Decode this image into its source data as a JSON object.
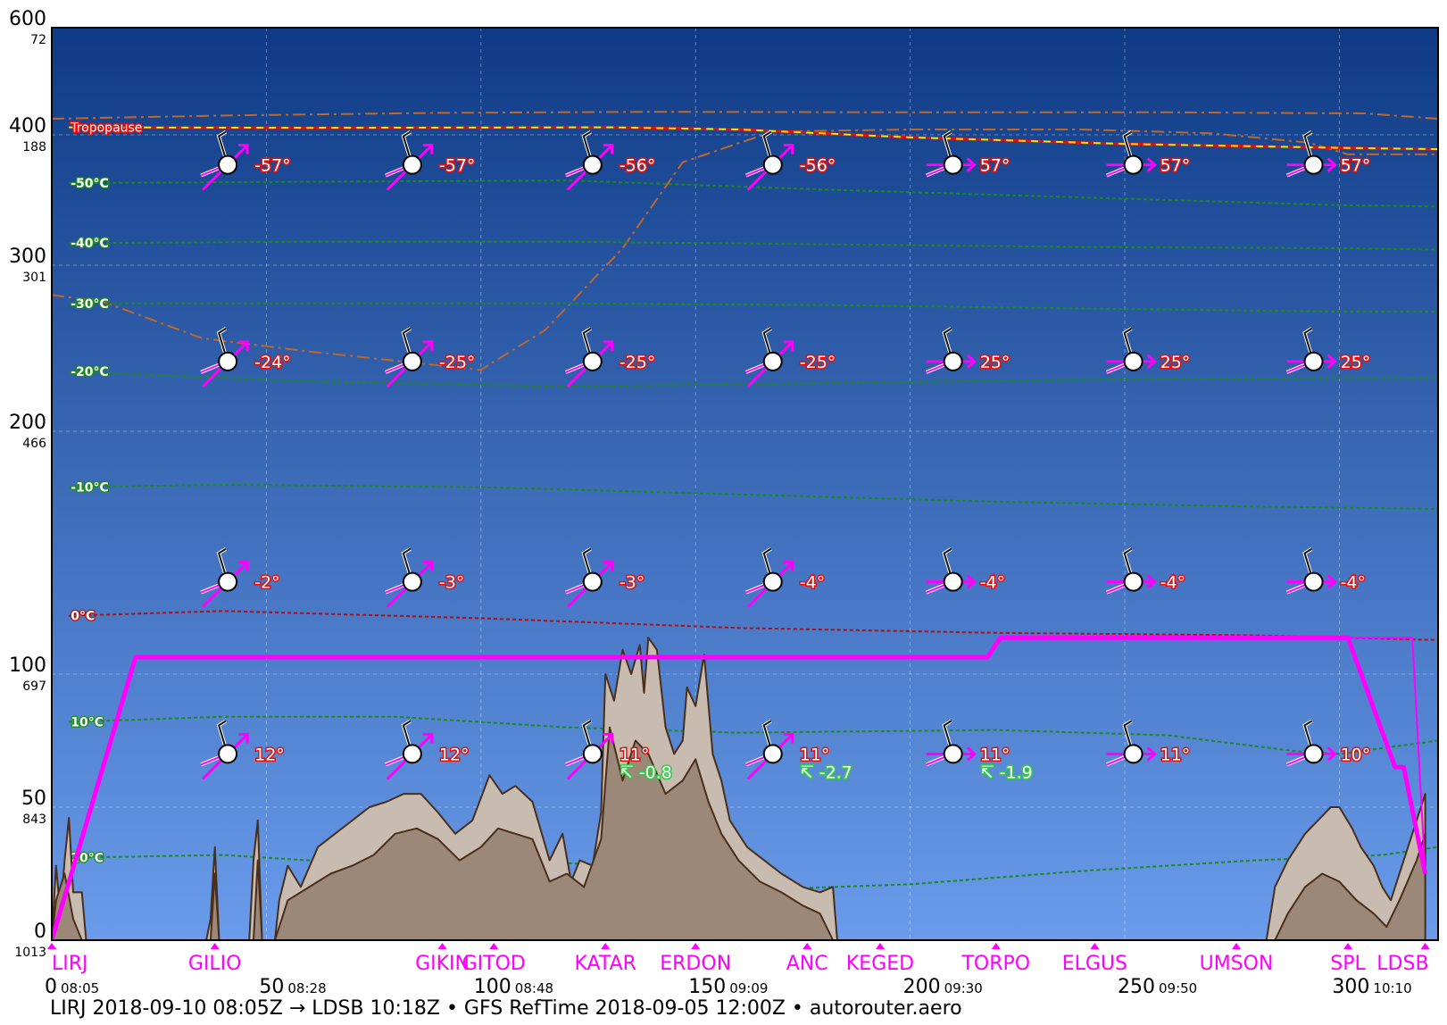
{
  "chart_data": {
    "type": "line",
    "footer": "LIRJ 2018-09-10 08:05Z → LDSB 10:18Z • GFS RefTime 2018-09-05 12:00Z • autorouter.aero",
    "xlim": [
      0,
      323
    ],
    "ylim": [
      0,
      600
    ],
    "y_ticks": [
      {
        "fl": 0,
        "hpa": "1013"
      },
      {
        "fl": 50,
        "hpa": "843"
      },
      {
        "fl": 100,
        "hpa": "697"
      },
      {
        "fl": 200,
        "hpa": "466"
      },
      {
        "fl": 300,
        "hpa": "301"
      },
      {
        "fl": 400,
        "hpa": "188"
      },
      {
        "fl": 600,
        "hpa": "72"
      }
    ],
    "x_ticks": [
      {
        "nm": 0,
        "time": "08:05"
      },
      {
        "nm": 50,
        "time": "08:28"
      },
      {
        "nm": 100,
        "time": "08:48"
      },
      {
        "nm": 150,
        "time": "09:09"
      },
      {
        "nm": 200,
        "time": "09:30"
      },
      {
        "nm": 250,
        "time": "09:50"
      },
      {
        "nm": 300,
        "time": "10:10"
      }
    ],
    "waypoints": [
      {
        "name": "LIRJ",
        "nm": 0
      },
      {
        "name": "GILIO",
        "nm": 38
      },
      {
        "name": "GIKIN",
        "nm": 91
      },
      {
        "name": "GITOD",
        "nm": 103
      },
      {
        "name": "KATAR",
        "nm": 129
      },
      {
        "name": "ERDON",
        "nm": 150
      },
      {
        "name": "ANC",
        "nm": 176
      },
      {
        "name": "KEGED",
        "nm": 193
      },
      {
        "name": "TORPO",
        "nm": 220
      },
      {
        "name": "ELGUS",
        "nm": 243
      },
      {
        "name": "UMSON",
        "nm": 276
      },
      {
        "name": "SPL",
        "nm": 302
      },
      {
        "name": "LDSB",
        "nm": 320
      }
    ],
    "route_profile": {
      "name": "",
      "points": [
        [
          0,
          0
        ],
        [
          19.5,
          107
        ],
        [
          218,
          107
        ],
        [
          221,
          115
        ],
        [
          302,
          115
        ],
        [
          313,
          65
        ],
        [
          315,
          65
        ],
        [
          320,
          25
        ]
      ]
    },
    "planned_profile": {
      "name": "",
      "points": [
        [
          302,
          115
        ],
        [
          317,
          115
        ],
        [
          320,
          25
        ]
      ]
    },
    "tropopause": {
      "label": "Tropopause",
      "points": [
        [
          4,
          414
        ],
        [
          60,
          413
        ],
        [
          130,
          414
        ],
        [
          160,
          410
        ],
        [
          200,
          398
        ],
        [
          250,
          393
        ],
        [
          300,
          390
        ],
        [
          323,
          389
        ]
      ]
    },
    "isotherms": [
      {
        "label": "-50°C",
        "points": [
          [
            4,
            363
          ],
          [
            60,
            364
          ],
          [
            120,
            365
          ],
          [
            180,
            358
          ],
          [
            240,
            352
          ],
          [
            300,
            346
          ],
          [
            323,
            345
          ]
        ],
        "zero": false
      },
      {
        "label": "-40°C",
        "points": [
          [
            4,
            317
          ],
          [
            60,
            318
          ],
          [
            120,
            318
          ],
          [
            180,
            316
          ],
          [
            240,
            314
          ],
          [
            300,
            313
          ],
          [
            323,
            312
          ]
        ],
        "zero": false
      },
      {
        "label": "-30°C",
        "points": [
          [
            4,
            277
          ],
          [
            60,
            277
          ],
          [
            120,
            277
          ],
          [
            180,
            276
          ],
          [
            240,
            274
          ],
          [
            300,
            272
          ],
          [
            323,
            272
          ]
        ],
        "zero": false
      },
      {
        "label": "-20°C",
        "points": [
          [
            4,
            236
          ],
          [
            60,
            230
          ],
          [
            120,
            227
          ],
          [
            180,
            229
          ],
          [
            240,
            231
          ],
          [
            300,
            232
          ],
          [
            323,
            232
          ]
        ],
        "zero": false
      },
      {
        "label": "-10°C",
        "points": [
          [
            4,
            177
          ],
          [
            40,
            178
          ],
          [
            100,
            177
          ],
          [
            160,
            174
          ],
          [
            220,
            171
          ],
          [
            280,
            169
          ],
          [
            323,
            168
          ]
        ],
        "zero": false
      },
      {
        "label": "0°C",
        "points": [
          [
            4,
            124
          ],
          [
            40,
            126
          ],
          [
            100,
            123
          ],
          [
            160,
            119
          ],
          [
            220,
            117
          ],
          [
            280,
            116
          ],
          [
            323,
            114
          ]
        ],
        "zero": true
      },
      {
        "label": "10°C",
        "points": [
          [
            4,
            82
          ],
          [
            40,
            84
          ],
          [
            80,
            84
          ],
          [
            120,
            80
          ],
          [
            160,
            78
          ],
          [
            220,
            79
          ],
          [
            260,
            77
          ],
          [
            290,
            71
          ],
          [
            300,
            70
          ],
          [
            323,
            75
          ]
        ],
        "zero": false
      },
      {
        "label": "20°C",
        "points": [
          [
            4,
            31
          ],
          [
            40,
            32
          ],
          [
            80,
            28
          ],
          [
            110,
            30
          ],
          [
            130,
            28
          ],
          [
            150,
            21
          ],
          [
            165,
            19
          ],
          [
            200,
            21
          ],
          [
            240,
            26
          ],
          [
            280,
            30
          ],
          [
            310,
            32
          ],
          [
            323,
            35
          ]
        ],
        "zero": false
      }
    ],
    "aircraft_temp_line": {
      "points": [
        [
          0,
          282
        ],
        [
          12,
          278
        ],
        [
          35,
          256
        ],
        [
          60,
          248
        ],
        [
          100,
          237
        ],
        [
          115,
          261
        ],
        [
          133,
          313
        ],
        [
          147,
          379
        ],
        [
          168,
          406
        ],
        [
          200,
          410
        ],
        [
          240,
          410
        ],
        [
          270,
          403
        ],
        [
          293,
          394
        ],
        [
          302,
          385
        ],
        [
          323,
          385
        ]
      ]
    },
    "upper_dashdot": {
      "points": [
        [
          0,
          430
        ],
        [
          40,
          436
        ],
        [
          90,
          441
        ],
        [
          140,
          443
        ],
        [
          200,
          442
        ],
        [
          260,
          442
        ],
        [
          306,
          440
        ],
        [
          323,
          430
        ]
      ]
    },
    "terrain_max": [
      [
        0,
        0
      ],
      [
        1,
        28
      ],
      [
        2,
        10
      ],
      [
        3,
        30
      ],
      [
        4,
        46
      ],
      [
        5,
        18
      ],
      [
        7,
        18
      ],
      [
        8,
        0
      ],
      [
        36,
        0
      ],
      [
        37,
        8
      ],
      [
        38,
        35
      ],
      [
        39,
        0
      ],
      [
        46,
        0
      ],
      [
        47,
        30
      ],
      [
        48,
        45
      ],
      [
        49,
        0
      ],
      [
        52,
        0
      ],
      [
        53,
        15
      ],
      [
        55,
        28
      ],
      [
        58,
        20
      ],
      [
        62,
        35
      ],
      [
        66,
        40
      ],
      [
        70,
        45
      ],
      [
        74,
        50
      ],
      [
        78,
        52
      ],
      [
        82,
        55
      ],
      [
        86,
        55
      ],
      [
        90,
        48
      ],
      [
        94,
        40
      ],
      [
        98,
        45
      ],
      [
        102,
        62
      ],
      [
        105,
        55
      ],
      [
        108,
        58
      ],
      [
        112,
        52
      ],
      [
        116,
        30
      ],
      [
        119,
        40
      ],
      [
        121,
        22
      ],
      [
        123,
        30
      ],
      [
        126,
        28
      ],
      [
        128,
        48
      ],
      [
        129,
        100
      ],
      [
        131,
        90
      ],
      [
        133,
        110
      ],
      [
        135,
        100
      ],
      [
        137,
        112
      ],
      [
        138,
        93
      ],
      [
        139,
        115
      ],
      [
        141,
        110
      ],
      [
        143,
        80
      ],
      [
        145,
        70
      ],
      [
        147,
        75
      ],
      [
        148,
        95
      ],
      [
        150,
        88
      ],
      [
        152,
        108
      ],
      [
        154,
        70
      ],
      [
        156,
        60
      ],
      [
        158,
        45
      ],
      [
        162,
        35
      ],
      [
        166,
        30
      ],
      [
        170,
        25
      ],
      [
        175,
        20
      ],
      [
        179,
        18
      ],
      [
        182,
        20
      ],
      [
        183,
        0
      ],
      [
        283,
        0
      ],
      [
        285,
        20
      ],
      [
        288,
        30
      ],
      [
        292,
        40
      ],
      [
        295,
        45
      ],
      [
        298,
        50
      ],
      [
        300,
        50
      ],
      [
        303,
        42
      ],
      [
        305,
        35
      ],
      [
        308,
        28
      ],
      [
        310,
        20
      ],
      [
        312,
        15
      ],
      [
        315,
        30
      ],
      [
        318,
        45
      ],
      [
        320,
        55
      ]
    ],
    "terrain_mean": [
      [
        0,
        0
      ],
      [
        1,
        15
      ],
      [
        3,
        25
      ],
      [
        5,
        8
      ],
      [
        7,
        0
      ],
      [
        37,
        0
      ],
      [
        38,
        25
      ],
      [
        39,
        0
      ],
      [
        47,
        0
      ],
      [
        48,
        30
      ],
      [
        49,
        0
      ],
      [
        52,
        0
      ],
      [
        55,
        15
      ],
      [
        60,
        20
      ],
      [
        65,
        25
      ],
      [
        70,
        28
      ],
      [
        75,
        32
      ],
      [
        80,
        40
      ],
      [
        85,
        42
      ],
      [
        90,
        38
      ],
      [
        95,
        30
      ],
      [
        100,
        35
      ],
      [
        104,
        42
      ],
      [
        108,
        40
      ],
      [
        112,
        38
      ],
      [
        116,
        22
      ],
      [
        120,
        25
      ],
      [
        124,
        20
      ],
      [
        128,
        38
      ],
      [
        130,
        80
      ],
      [
        133,
        60
      ],
      [
        136,
        75
      ],
      [
        139,
        70
      ],
      [
        143,
        55
      ],
      [
        147,
        60
      ],
      [
        150,
        68
      ],
      [
        153,
        52
      ],
      [
        156,
        40
      ],
      [
        160,
        30
      ],
      [
        165,
        22
      ],
      [
        170,
        18
      ],
      [
        175,
        13
      ],
      [
        179,
        10
      ],
      [
        182,
        0
      ],
      [
        285,
        0
      ],
      [
        288,
        10
      ],
      [
        292,
        20
      ],
      [
        296,
        25
      ],
      [
        300,
        22
      ],
      [
        304,
        15
      ],
      [
        308,
        10
      ],
      [
        311,
        5
      ],
      [
        314,
        15
      ],
      [
        318,
        30
      ],
      [
        320,
        40
      ]
    ],
    "wind_rows": [
      {
        "fl": 70,
        "temps": [
          "12°",
          "12°",
          "11°",
          "11°",
          "11°",
          "11°",
          "10°"
        ],
        "turb": [
          "",
          "",
          "↸ -0.8",
          "↸ -2.7",
          "↸ -1.9",
          "",
          ""
        ]
      },
      {
        "fl": 138,
        "temps": [
          "-2°",
          "-3°",
          "-3°",
          "-4°",
          "-4°",
          "-4°",
          "-4°"
        ],
        "turb": [
          "",
          "",
          "",
          "",
          "",
          "",
          ""
        ]
      },
      {
        "fl": 242,
        "temps": [
          "-24°",
          "-25°",
          "-25°",
          "-25°",
          "25°",
          "25°",
          "25°"
        ],
        "turb": [
          "",
          "",
          "",
          "",
          "",
          "",
          ""
        ]
      },
      {
        "fl": 377,
        "temps": [
          "-57°",
          "-57°",
          "-56°",
          "-56°",
          "57°",
          "57°",
          "57°"
        ],
        "turb": [
          "",
          "",
          "",
          "",
          "",
          "",
          ""
        ]
      }
    ],
    "wind_columns_nm": [
      41,
      84,
      126,
      168,
      210,
      252,
      294
    ],
    "colors": {
      "sky_top": "#0e3a85",
      "sky_bottom": "#6a9ceb",
      "route": "#ff00ff",
      "terrain_max": "#c8bbb0",
      "terrain_mean": "#9c8878",
      "terrain_edge": "#4a2e1a",
      "isotherm": "#1c8a1c",
      "zero_isotherm": "#b01010",
      "tropopause_red": "#e01010",
      "tropopause_yellow": "#f2e600",
      "temp_line": "#c0672a"
    }
  }
}
